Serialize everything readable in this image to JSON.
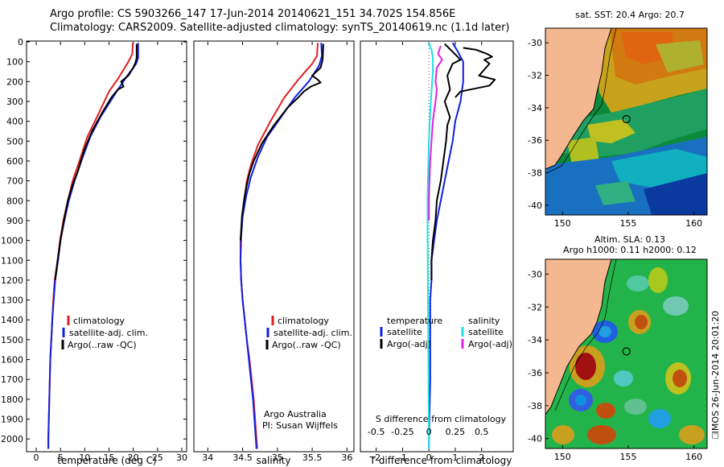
{
  "header": {
    "line1": "Argo profile: CS 5903266_147 17-Jun-2014 20140621_151 34.702S 154.856E",
    "line2": "Climatology: CARS2009. Satellite-adjusted climatology: synTS_20140619.nc (1.1d later)"
  },
  "colors": {
    "climatology": "#e02020",
    "satellite": "#1020e0",
    "argo": "#000000",
    "sal_satellite": "#20e0e0",
    "sal_argo": "#e020e0",
    "land": "#f4b890"
  },
  "chart_data": [
    {
      "id": "temperature",
      "type": "line",
      "xlabel": "temperature (deg C)",
      "xlim": [
        -2,
        31
      ],
      "xticks": [
        0,
        5,
        10,
        15,
        20,
        25,
        30
      ],
      "ylim": [
        2060,
        0
      ],
      "yticks": [
        0,
        100,
        200,
        300,
        400,
        500,
        600,
        700,
        800,
        900,
        1000,
        1100,
        1200,
        1300,
        1400,
        1500,
        1600,
        1700,
        1800,
        1900,
        2000
      ],
      "legend": [
        "climatology",
        "satellite-adj. clim.",
        "Argo(..raw -QC)"
      ],
      "series": [
        {
          "name": "climatology",
          "color": "#e02020",
          "points": [
            [
              19.9,
              5
            ],
            [
              19.8,
              60
            ],
            [
              19.0,
              100
            ],
            [
              17.0,
              180
            ],
            [
              15.0,
              250
            ],
            [
              12.5,
              380
            ],
            [
              10.5,
              480
            ],
            [
              8.9,
              600
            ],
            [
              7.5,
              700
            ],
            [
              6.5,
              800
            ],
            [
              5.6,
              900
            ],
            [
              4.9,
              1000
            ],
            [
              4.4,
              1100
            ],
            [
              3.8,
              1200
            ],
            [
              3.5,
              1300
            ],
            [
              3.3,
              1400
            ],
            [
              3.1,
              1500
            ],
            [
              2.9,
              1600
            ],
            [
              2.8,
              1700
            ],
            [
              2.7,
              1800
            ],
            [
              2.6,
              1900
            ],
            [
              2.5,
              2000
            ],
            [
              2.5,
              2050
            ]
          ]
        },
        {
          "name": "satellite-adj. clim.",
          "color": "#1020e0",
          "points": [
            [
              21.0,
              5
            ],
            [
              21.0,
              80
            ],
            [
              20.6,
              110
            ],
            [
              18.5,
              180
            ],
            [
              16.3,
              260
            ],
            [
              13.2,
              380
            ],
            [
              11.1,
              480
            ],
            [
              9.3,
              600
            ],
            [
              7.9,
              700
            ],
            [
              6.7,
              800
            ],
            [
              5.8,
              900
            ],
            [
              5.0,
              1000
            ],
            [
              4.5,
              1100
            ],
            [
              3.9,
              1200
            ],
            [
              3.6,
              1300
            ],
            [
              3.3,
              1400
            ],
            [
              3.1,
              1500
            ],
            [
              2.9,
              1600
            ],
            [
              2.8,
              1700
            ],
            [
              2.7,
              1800
            ],
            [
              2.6,
              1900
            ],
            [
              2.5,
              2000
            ],
            [
              2.5,
              2050
            ]
          ]
        },
        {
          "name": "Argo(..raw -QC)",
          "color": "#000000",
          "points": [
            [
              20.7,
              10
            ],
            [
              20.7,
              80
            ],
            [
              20.5,
              100
            ],
            [
              20.0,
              130
            ],
            [
              19.0,
              170
            ],
            [
              17.5,
              200
            ],
            [
              18.0,
              225
            ],
            [
              16.8,
              240
            ],
            [
              15.5,
              280
            ],
            [
              13.5,
              360
            ],
            [
              11.5,
              450
            ],
            [
              9.8,
              550
            ],
            [
              8.6,
              650
            ],
            [
              7.5,
              720
            ],
            [
              6.5,
              800
            ],
            [
              5.7,
              900
            ],
            [
              5.0,
              1000
            ],
            [
              4.4,
              1100
            ],
            [
              3.9,
              1200
            ]
          ]
        }
      ]
    },
    {
      "id": "salinity",
      "type": "line",
      "xlabel": "salinity",
      "xlim": [
        33.8,
        36.1
      ],
      "xticks": [
        34,
        34.5,
        35,
        35.5,
        36
      ],
      "ylim": [
        2060,
        0
      ],
      "legend": [
        "climatology",
        "satellite-adj. clim.",
        "Argo(..raw -QC)"
      ],
      "annotation": [
        "Argo Australia",
        "PI: Susan Wijffels"
      ],
      "series": [
        {
          "name": "climatology",
          "color": "#e02020",
          "points": [
            [
              35.58,
              5
            ],
            [
              35.57,
              70
            ],
            [
              35.5,
              110
            ],
            [
              35.3,
              190
            ],
            [
              35.1,
              280
            ],
            [
              34.9,
              400
            ],
            [
              34.72,
              520
            ],
            [
              34.62,
              620
            ],
            [
              34.56,
              700
            ],
            [
              34.52,
              800
            ],
            [
              34.49,
              900
            ],
            [
              34.47,
              1000
            ],
            [
              34.47,
              1100
            ],
            [
              34.48,
              1200
            ],
            [
              34.5,
              1300
            ],
            [
              34.53,
              1400
            ],
            [
              34.56,
              1500
            ],
            [
              34.6,
              1600
            ],
            [
              34.63,
              1700
            ],
            [
              34.66,
              1800
            ],
            [
              34.68,
              1900
            ],
            [
              34.7,
              2000
            ],
            [
              34.71,
              2050
            ]
          ]
        },
        {
          "name": "satellite-adj. clim.",
          "color": "#1020e0",
          "points": [
            [
              35.63,
              5
            ],
            [
              35.64,
              70
            ],
            [
              35.6,
              120
            ],
            [
              35.45,
              200
            ],
            [
              35.25,
              280
            ],
            [
              35.05,
              380
            ],
            [
              34.85,
              480
            ],
            [
              34.72,
              580
            ],
            [
              34.62,
              680
            ],
            [
              34.55,
              780
            ],
            [
              34.5,
              880
            ],
            [
              34.48,
              980
            ],
            [
              34.47,
              1100
            ],
            [
              34.48,
              1200
            ],
            [
              34.5,
              1300
            ],
            [
              34.53,
              1400
            ],
            [
              34.56,
              1500
            ],
            [
              34.59,
              1600
            ],
            [
              34.62,
              1700
            ],
            [
              34.65,
              1800
            ],
            [
              34.67,
              1900
            ],
            [
              34.69,
              2000
            ],
            [
              34.7,
              2050
            ]
          ]
        },
        {
          "name": "Argo(..raw -QC)",
          "color": "#000000",
          "points": [
            [
              35.66,
              10
            ],
            [
              35.65,
              90
            ],
            [
              35.62,
              130
            ],
            [
              35.5,
              170
            ],
            [
              35.58,
              190
            ],
            [
              35.62,
              205
            ],
            [
              35.48,
              225
            ],
            [
              35.38,
              250
            ],
            [
              35.3,
              280
            ],
            [
              35.15,
              330
            ],
            [
              34.95,
              420
            ],
            [
              34.78,
              510
            ],
            [
              34.66,
              600
            ],
            [
              34.6,
              660
            ],
            [
              34.56,
              720
            ],
            [
              34.52,
              800
            ],
            [
              34.49,
              880
            ],
            [
              34.48,
              950
            ],
            [
              34.47,
              1000
            ]
          ]
        }
      ]
    },
    {
      "id": "difference",
      "type": "line",
      "xlabel": "T difference from climatology",
      "xlabel_top": "S difference from climatology",
      "xlim": [
        -2.6,
        3.2
      ],
      "xticks": [
        -2,
        -1,
        0,
        1,
        2
      ],
      "sticks": [
        "-0.5",
        "-0.25",
        "0",
        "0.25",
        "0.5"
      ],
      "ylim": [
        2060,
        0
      ],
      "legend_left_title": "temperature",
      "legend_right_title": "salinity",
      "legend": [
        "satellite",
        "Argo(-adj)",
        "satellite",
        "Argo(-adj)"
      ],
      "series": [
        {
          "name": "T satellite",
          "color": "#1020e0",
          "points": [
            [
              0.9,
              5
            ],
            [
              1.1,
              50
            ],
            [
              1.3,
              100
            ],
            [
              1.3,
              200
            ],
            [
              1.2,
              300
            ],
            [
              1.0,
              400
            ],
            [
              0.9,
              500
            ],
            [
              0.75,
              600
            ],
            [
              0.6,
              700
            ],
            [
              0.45,
              800
            ],
            [
              0.3,
              900
            ],
            [
              0.2,
              1000
            ],
            [
              0.1,
              1100
            ],
            [
              0.1,
              1200
            ],
            [
              0.05,
              1300
            ],
            [
              0.05,
              1500
            ],
            [
              0.05,
              1700
            ],
            [
              0.0,
              2000
            ],
            [
              0.0,
              2050
            ]
          ]
        },
        {
          "name": "T Argo(-adj)",
          "color": "#000000",
          "points": [
            [
              0.6,
              10
            ],
            [
              0.9,
              50
            ],
            [
              1.2,
              90
            ],
            [
              0.9,
              110
            ],
            [
              0.7,
              170
            ],
            [
              0.8,
              240
            ],
            [
              0.6,
              300
            ],
            [
              0.8,
              380
            ],
            [
              0.7,
              420
            ],
            [
              0.65,
              500
            ],
            [
              0.55,
              600
            ],
            [
              0.45,
              700
            ],
            [
              0.3,
              800
            ],
            [
              0.25,
              900
            ],
            [
              0.15,
              1000
            ],
            [
              0.1,
              1100
            ],
            [
              0.1,
              1200
            ]
          ]
        },
        {
          "name": "Argo raw",
          "color": "#000000",
          "points": [
            [
              1.3,
              30
            ],
            [
              1.8,
              40
            ],
            [
              2.2,
              60
            ],
            [
              2.4,
              75
            ],
            [
              2.1,
              90
            ],
            [
              2.3,
              110
            ],
            [
              2.1,
              140
            ],
            [
              1.9,
              170
            ],
            [
              2.5,
              190
            ],
            [
              2.3,
              220
            ],
            [
              1.2,
              250
            ],
            [
              1.0,
              280
            ]
          ]
        },
        {
          "name": "S satellite",
          "color": "#20e0e0",
          "points": [
            [
              0.0,
              5
            ],
            [
              0.1,
              40
            ],
            [
              0.15,
              80
            ],
            [
              0.15,
              150
            ],
            [
              0.1,
              250
            ],
            [
              0.05,
              350
            ],
            [
              0.0,
              500
            ],
            [
              -0.03,
              650
            ],
            [
              -0.05,
              800
            ],
            [
              -0.05,
              1000
            ],
            [
              -0.04,
              1200
            ],
            [
              -0.03,
              1400
            ],
            [
              -0.02,
              1600
            ],
            [
              -0.01,
              1800
            ],
            [
              0.0,
              2000
            ],
            [
              0.0,
              2050
            ]
          ]
        },
        {
          "name": "S Argo(-adj)",
          "color": "#e020e0",
          "points": [
            [
              0.45,
              20
            ],
            [
              0.35,
              60
            ],
            [
              0.5,
              90
            ],
            [
              0.3,
              130
            ],
            [
              0.25,
              200
            ],
            [
              0.3,
              240
            ],
            [
              0.25,
              300
            ],
            [
              0.2,
              350
            ],
            [
              0.15,
              400
            ],
            [
              0.1,
              500
            ],
            [
              0.05,
              600
            ],
            [
              0.02,
              700
            ],
            [
              0.0,
              800
            ],
            [
              0.0,
              900
            ]
          ]
        }
      ]
    }
  ],
  "map_top": {
    "title": "sat. SST: 20.4  Argo: 20.7",
    "yticks": [
      "-30",
      "-32",
      "-34",
      "-36",
      "-38",
      "-40"
    ],
    "xticks": [
      "150",
      "155",
      "160"
    ],
    "float_lon": 154.86,
    "float_lat": -34.7
  },
  "map_bottom": {
    "title1": "Altim. SLA: 0.13",
    "title2": "Argo h1000: 0.11  h2000: 0.12",
    "yticks": [
      "-30",
      "-32",
      "-34",
      "-36",
      "-38",
      "-40"
    ],
    "xticks": [
      "150",
      "155",
      "160"
    ],
    "float_lon": 154.86,
    "float_lat": -34.7
  },
  "watermark": "⎕IMOS 26-Jun-2014 20:01:20"
}
